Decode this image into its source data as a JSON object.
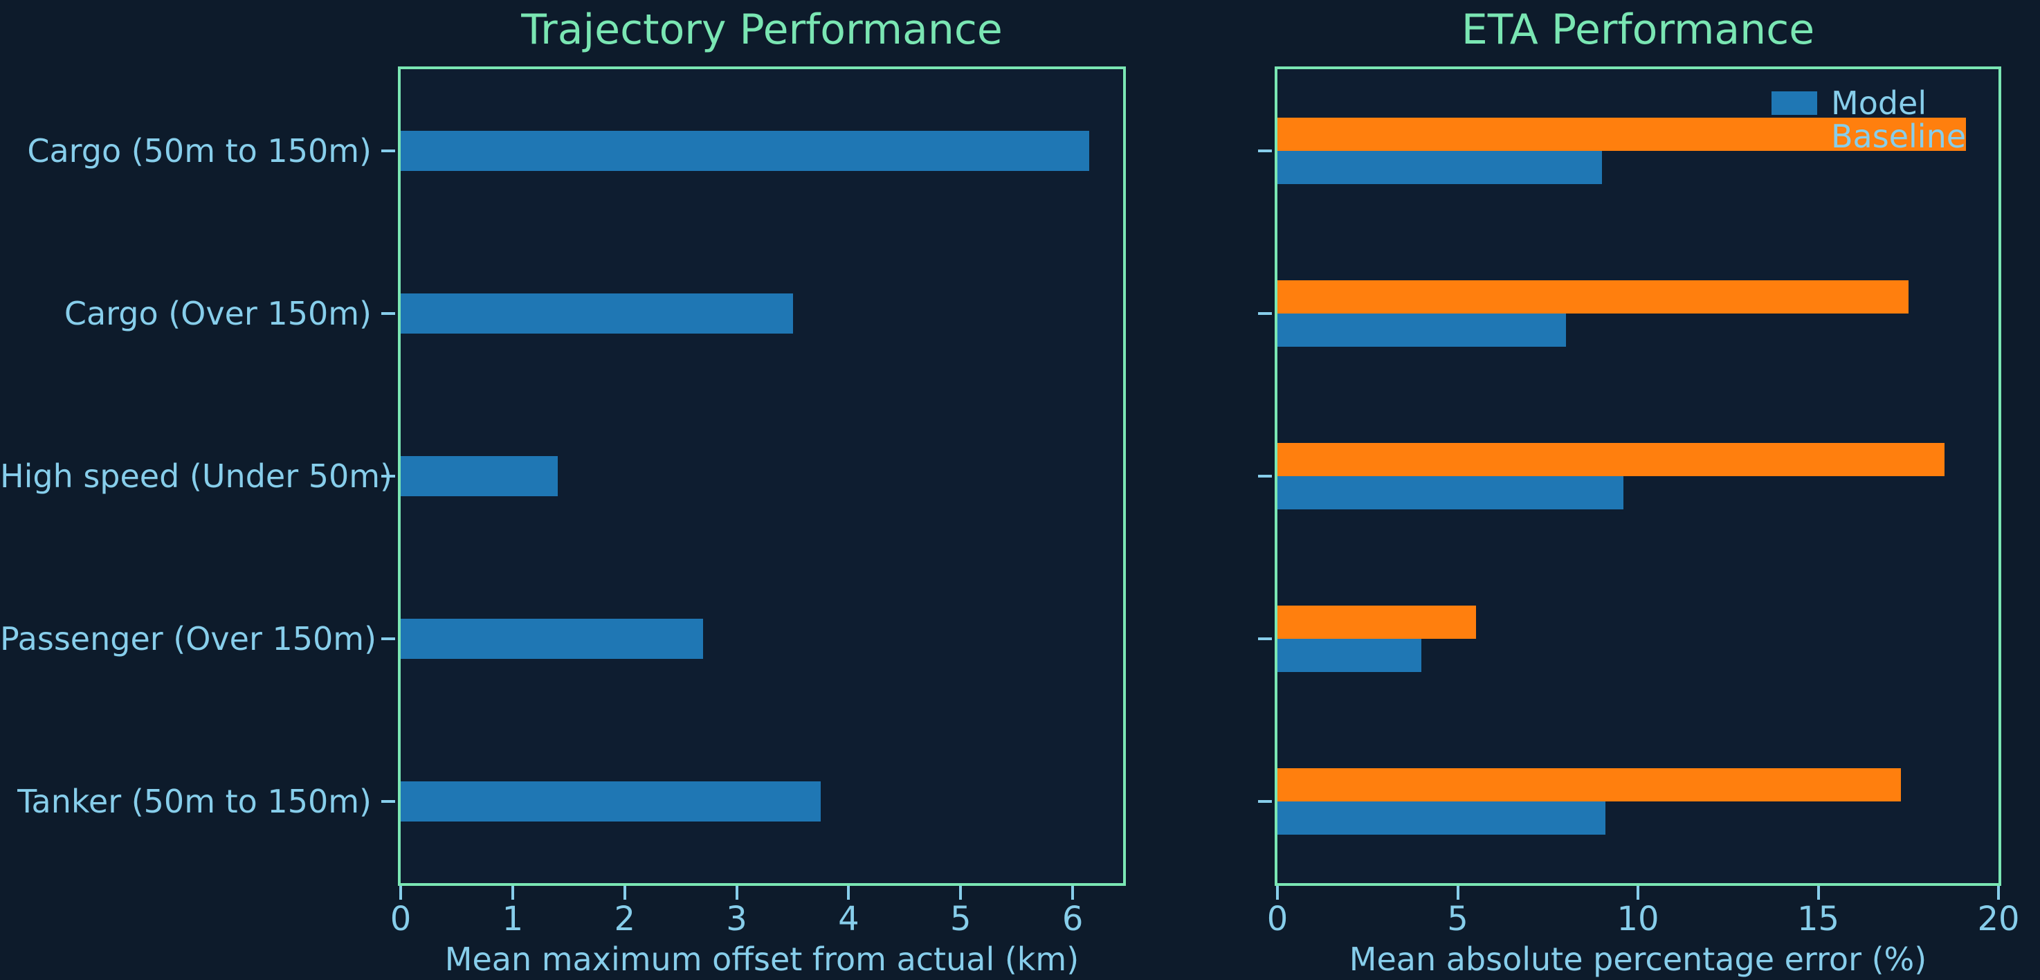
{
  "colors": {
    "background": "#0d1b2b",
    "axes_background": "#0e1d30",
    "spine_green": "#7ae6b3",
    "title_green": "#7ae6b3",
    "text_light_blue": "#87ceeb",
    "bar_blue": "#1f77b4",
    "bar_orange": "#ff7f0e"
  },
  "chart_data": [
    {
      "type": "bar",
      "orientation": "horizontal",
      "title": "Trajectory Performance",
      "xlabel": "Mean maximum offset from actual (km)",
      "categories": [
        "Cargo (50m to 150m)",
        "Cargo (Over 150m)",
        "High speed (Under 50m)",
        "Passenger (Over 150m)",
        "Tanker (50m to 150m)"
      ],
      "series": [
        {
          "name": "Model",
          "color": "#1f77b4",
          "values": [
            6.15,
            3.5,
            1.4,
            2.7,
            3.75
          ]
        }
      ],
      "xlim": [
        0,
        6.45
      ],
      "xticks": [
        0,
        1,
        2,
        3,
        4,
        5,
        6
      ],
      "grid": false,
      "legend": null
    },
    {
      "type": "bar",
      "orientation": "horizontal",
      "title": "ETA Performance",
      "xlabel": "Mean absolute percentage error (%)",
      "categories": [
        "Cargo (50m to 150m)",
        "Cargo (Over 150m)",
        "High speed (Under 50m)",
        "Passenger (Over 150m)",
        "Tanker (50m to 150m)"
      ],
      "series": [
        {
          "name": "Baseline",
          "color": "#ff7f0e",
          "values": [
            19.1,
            17.5,
            18.5,
            5.5,
            17.3
          ]
        },
        {
          "name": "Model",
          "color": "#1f77b4",
          "values": [
            9.0,
            8.0,
            9.6,
            4.0,
            9.1
          ]
        }
      ],
      "xlim": [
        0,
        20
      ],
      "xticks": [
        0,
        5,
        10,
        15,
        20
      ],
      "grid": false,
      "legend": {
        "position": "upper right",
        "entries": [
          "Model",
          "Baseline"
        ]
      }
    }
  ]
}
